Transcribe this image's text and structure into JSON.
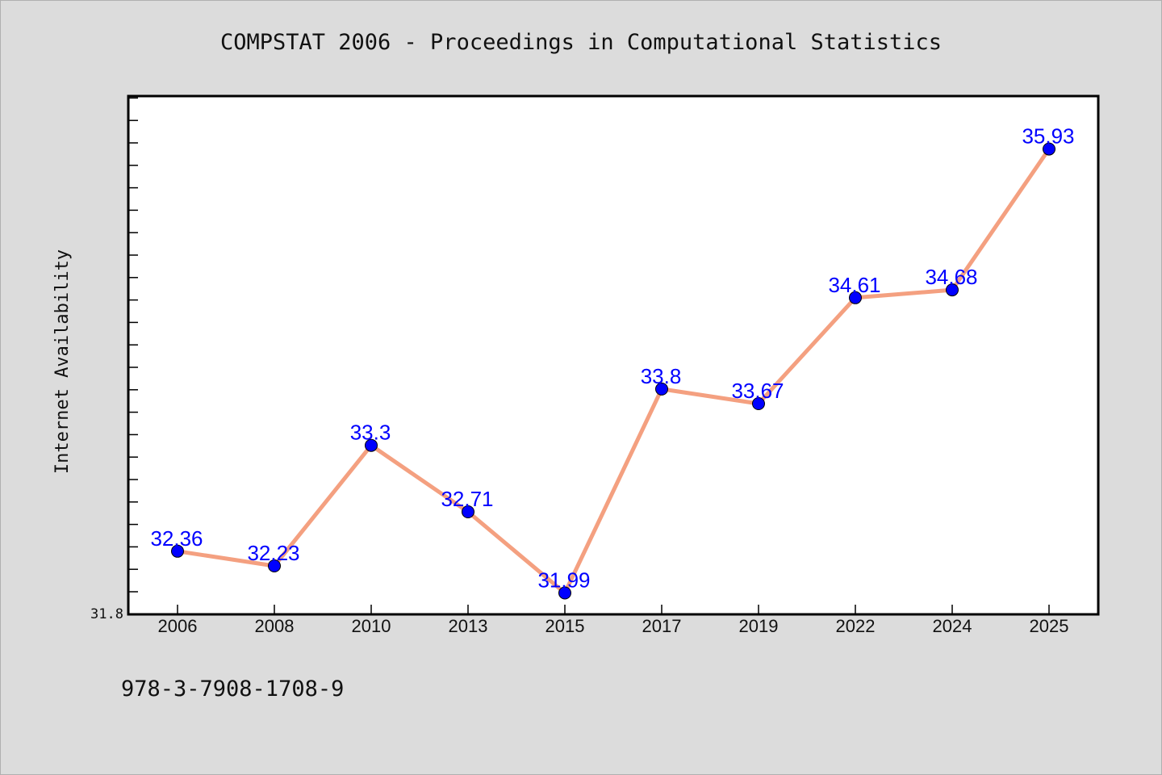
{
  "chart_data": {
    "type": "line",
    "title": "COMPSTAT 2006 - Proceedings in Computational Statistics",
    "xlabel": "",
    "ylabel": "Internet Availability",
    "categories": [
      "2006",
      "2008",
      "2010",
      "2013",
      "2015",
      "2017",
      "2019",
      "2022",
      "2024",
      "2025"
    ],
    "series": [
      {
        "values": [
          32.36,
          32.23,
          33.3,
          32.71,
          31.99,
          33.8,
          33.67,
          34.61,
          34.68,
          35.93
        ],
        "data_labels": [
          "32.36",
          "32.23",
          "33.3",
          "32.71",
          "31.99",
          "33.8",
          "33.67",
          "34.61",
          "34.68",
          "35.93"
        ]
      }
    ],
    "ylim": [
      31.8,
      36.4
    ],
    "y_tick_labels": [
      "31.8"
    ],
    "grid": false,
    "legend": "none",
    "colors": {
      "line": "#f4a080",
      "marker": "#0000ff",
      "data_label": "#0000ff",
      "plot_background": "#ffffff",
      "figure_background": "#dcdcdc"
    }
  },
  "footer": {
    "isbn": "978-3-7908-1708-9"
  }
}
